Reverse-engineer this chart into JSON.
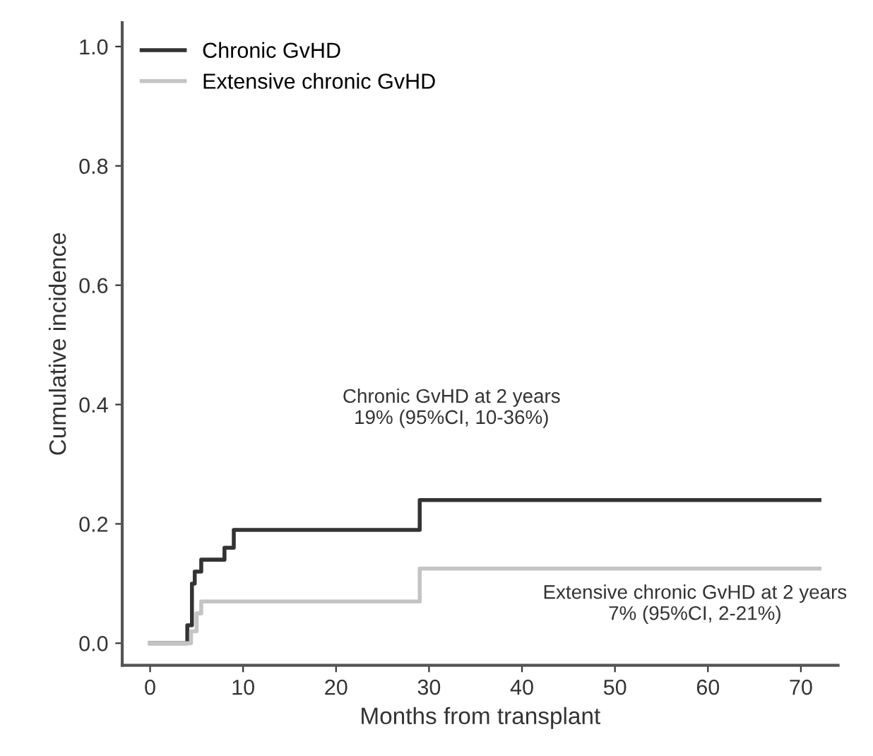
{
  "chart_data": {
    "type": "step",
    "xlabel": "Months from transplant",
    "ylabel": "Cumulative incidence",
    "xlim": [
      -3,
      74
    ],
    "xticks": [
      0,
      10,
      20,
      30,
      40,
      50,
      60,
      70
    ],
    "ylim": [
      -0.037,
      1.04
    ],
    "yticks": [
      {
        "value": 0,
        "label": "0.0"
      },
      0.2,
      0.4,
      0.6,
      0.8,
      {
        "value": 1,
        "label": "1.0"
      }
    ],
    "grid": false,
    "legend": "top left",
    "line_style": "solid",
    "marker": "none",
    "series": [
      {
        "name": "Chronic GvHD",
        "color": "#333333",
        "x": [
          0,
          4,
          4.5,
          4.8,
          5.5,
          8,
          9,
          29,
          72
        ],
        "values": [
          0,
          0.03,
          0.1,
          0.12,
          0.14,
          0.16,
          0.19,
          0.24,
          0.24
        ]
      },
      {
        "name": "Extensive chronic GvHD",
        "color": "#c4c4c4",
        "x": [
          0,
          4.4,
          5,
          5.5,
          29,
          72
        ],
        "values": [
          0,
          0.02,
          0.05,
          0.07,
          0.125,
          0.125
        ]
      }
    ],
    "annotations": [
      "Chronic GvHD at 2 years\n19% (95%CI, 10-36%)",
      "Extensive chronic GvHD at 2 years\n7% (95%CI, 2-21%)"
    ]
  }
}
